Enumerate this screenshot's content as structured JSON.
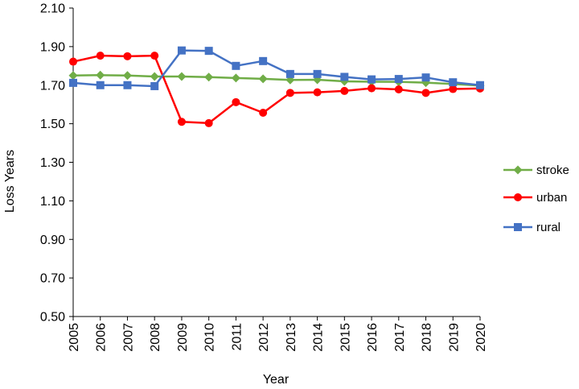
{
  "chart_data": {
    "type": "line",
    "xlabel": "Year",
    "ylabel": "Loss Years",
    "ylim": [
      0.5,
      2.1
    ],
    "yticks": [
      "0.50",
      "0.70",
      "0.90",
      "1.10",
      "1.30",
      "1.50",
      "1.70",
      "1.90",
      "2.10"
    ],
    "x": [
      "2005",
      "2006",
      "2007",
      "2008",
      "2009",
      "2010",
      "2011",
      "2012",
      "2013",
      "2014",
      "2015",
      "2016",
      "2017",
      "2018",
      "2019",
      "2020"
    ],
    "grid": false,
    "legend_position": "right",
    "series": [
      {
        "name": "stroke",
        "color": "#70AD47",
        "marker": "diamond",
        "values": [
          1.75,
          1.752,
          1.75,
          1.745,
          1.745,
          1.742,
          1.737,
          1.733,
          1.727,
          1.728,
          1.72,
          1.718,
          1.717,
          1.713,
          1.706,
          1.698
        ]
      },
      {
        "name": "urban",
        "color": "#FF0000",
        "marker": "circle",
        "values": [
          1.822,
          1.853,
          1.85,
          1.853,
          1.51,
          1.503,
          1.612,
          1.557,
          1.66,
          1.663,
          1.67,
          1.684,
          1.678,
          1.66,
          1.68,
          1.683
        ]
      },
      {
        "name": "rural",
        "color": "#4472C4",
        "marker": "square",
        "values": [
          1.712,
          1.7,
          1.7,
          1.695,
          1.88,
          1.878,
          1.8,
          1.825,
          1.758,
          1.758,
          1.743,
          1.73,
          1.732,
          1.74,
          1.715,
          1.7
        ]
      }
    ]
  }
}
